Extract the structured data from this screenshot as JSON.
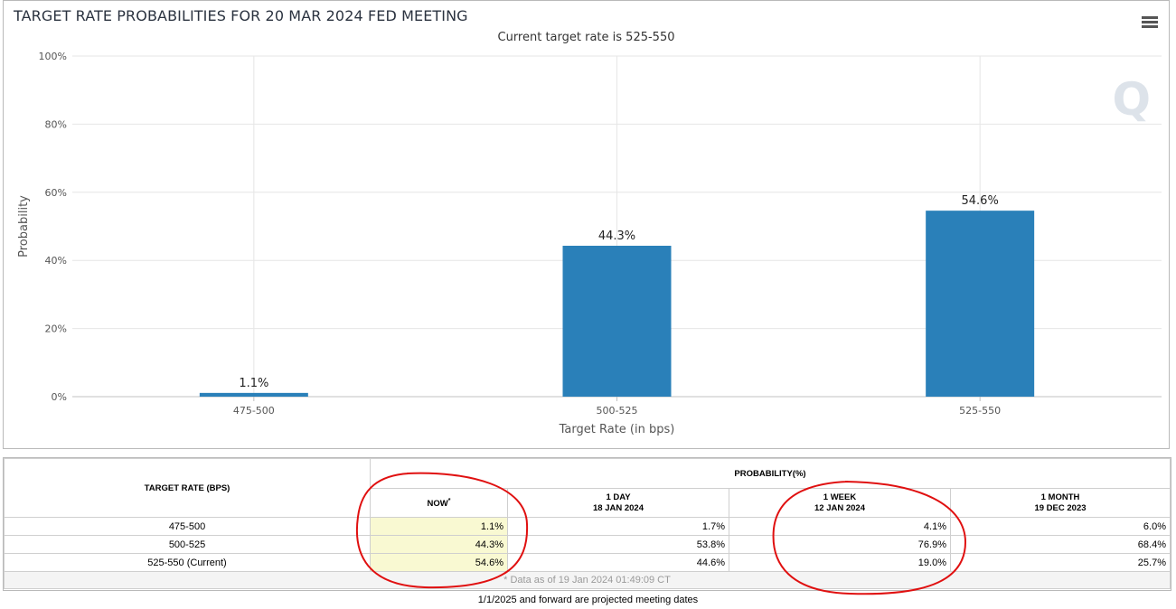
{
  "menu_icon": "hamburger-menu-icon",
  "watermark": "Q",
  "chart_data": {
    "type": "bar",
    "title": "TARGET RATE PROBABILITIES FOR 20 MAR 2024 FED MEETING",
    "subtitle": "Current target rate is 525-550",
    "xlabel": "Target Rate (in bps)",
    "ylabel": "Probability",
    "categories": [
      "475-500",
      "500-525",
      "525-550"
    ],
    "values": [
      1.1,
      44.3,
      54.6
    ],
    "data_labels": [
      "1.1%",
      "44.3%",
      "54.6%"
    ],
    "ylim": [
      0,
      100
    ],
    "yticks": [
      0,
      20,
      40,
      60,
      80,
      100
    ],
    "ytick_labels": [
      "0%",
      "20%",
      "40%",
      "60%",
      "80%",
      "100%"
    ],
    "grid": true,
    "bar_color": "#2a80b9"
  },
  "table": {
    "col_target": "TARGET RATE (BPS)",
    "col_group": "PROBABILITY(%)",
    "columns": [
      {
        "line1": "NOW",
        "line2": ""
      },
      {
        "line1": "1 DAY",
        "line2": "18 JAN 2024"
      },
      {
        "line1": "1 WEEK",
        "line2": "12 JAN 2024"
      },
      {
        "line1": "1 MONTH",
        "line2": "19 DEC 2023"
      }
    ],
    "now_marker": "*",
    "rows": [
      {
        "rate": "475-500",
        "values": [
          "1.1%",
          "1.7%",
          "4.1%",
          "6.0%"
        ]
      },
      {
        "rate": "500-525",
        "values": [
          "44.3%",
          "53.8%",
          "76.9%",
          "68.4%"
        ]
      },
      {
        "rate": "525-550 (Current)",
        "values": [
          "54.6%",
          "44.6%",
          "19.0%",
          "25.7%"
        ]
      }
    ],
    "data_as_of": "* Data as of 19 Jan 2024 01:49:09 CT"
  },
  "footnote": "1/1/2025 and forward are projected meeting dates"
}
